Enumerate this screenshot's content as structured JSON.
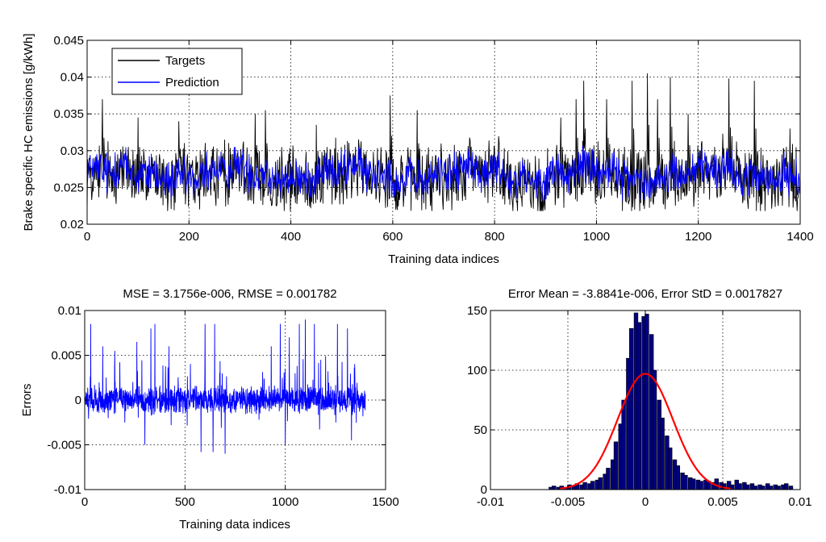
{
  "chart_data": [
    {
      "type": "line",
      "title": "",
      "xlabel": "Training data indices",
      "ylabel": "Brake specific HC emissions [g/kWh]",
      "xlim": [
        0,
        1400
      ],
      "ylim": [
        0.02,
        0.045
      ],
      "x_ticks": [
        "0",
        "200",
        "400",
        "600",
        "800",
        "1000",
        "1200",
        "1400"
      ],
      "y_ticks": [
        "0.02",
        "0.025",
        "0.03",
        "0.035",
        "0.04",
        "0.045"
      ],
      "grid": true,
      "legend": "top-left",
      "series": [
        {
          "name": "Targets",
          "color": "#000000",
          "n_points": 1400,
          "baseline": 0.0265,
          "low": 0.0225,
          "typical_high": 0.031,
          "spikes": [
            [
              30,
              0.037
            ],
            [
              100,
              0.0345
            ],
            [
              180,
              0.034
            ],
            [
              330,
              0.035
            ],
            [
              350,
              0.0355
            ],
            [
              450,
              0.0335
            ],
            [
              595,
              0.0375
            ],
            [
              648,
              0.0355
            ],
            [
              930,
              0.0345
            ],
            [
              960,
              0.037
            ],
            [
              975,
              0.0395
            ],
            [
              1020,
              0.037
            ],
            [
              1070,
              0.0395
            ],
            [
              1100,
              0.0405
            ],
            [
              1120,
              0.037
            ],
            [
              1145,
              0.04
            ],
            [
              1180,
              0.035
            ],
            [
              1260,
              0.0398
            ],
            [
              1310,
              0.0395
            ],
            [
              1380,
              0.033
            ]
          ]
        },
        {
          "name": "Prediction",
          "color": "#0000ff",
          "n_points": 1400,
          "baseline": 0.0268,
          "low": 0.0235,
          "typical_high": 0.0305
        }
      ]
    },
    {
      "type": "line",
      "title": "MSE = 3.1756e-006, RMSE = 0.001782",
      "xlabel": "Training data indices",
      "ylabel": "Errors",
      "xlim": [
        0,
        1500
      ],
      "ylim": [
        -0.01,
        0.01
      ],
      "x_ticks": [
        "0",
        "500",
        "1000",
        "1500"
      ],
      "y_ticks": [
        "-0.01",
        "-0.005",
        "0",
        "0.005",
        "0.01"
      ],
      "grid": true,
      "series": [
        {
          "name": "Errors",
          "color": "#0000ff",
          "n_points": 1400,
          "spikes": [
            [
              30,
              0.0085
            ],
            [
              90,
              0.006
            ],
            [
              150,
              0.0055
            ],
            [
              260,
              0.0065
            ],
            [
              330,
              0.008
            ],
            [
              350,
              0.0085
            ],
            [
              420,
              0.006
            ],
            [
              600,
              0.0085
            ],
            [
              648,
              0.0085
            ],
            [
              700,
              0.0065
            ],
            [
              930,
              0.006
            ],
            [
              975,
              0.0085
            ],
            [
              1020,
              0.007
            ],
            [
              1070,
              0.0085
            ],
            [
              1100,
              0.009
            ],
            [
              1145,
              0.0085
            ],
            [
              1260,
              0.0085
            ],
            [
              1310,
              0.008
            ],
            [
              300,
              -0.005
            ],
            [
              580,
              -0.0058
            ],
            [
              640,
              -0.0058
            ],
            [
              700,
              -0.006
            ],
            [
              1000,
              -0.005
            ],
            [
              1330,
              -0.0045
            ]
          ]
        }
      ]
    },
    {
      "type": "bar",
      "title": "Error Mean = -3.8841e-006, Error StD = 0.0017827",
      "xlabel": "",
      "ylabel": "",
      "xlim": [
        -0.01,
        0.01
      ],
      "ylim": [
        0,
        150
      ],
      "x_ticks": [
        "-0.01",
        "-0.005",
        "0",
        "0.005",
        "0.01"
      ],
      "y_ticks": [
        "0",
        "50",
        "100",
        "150"
      ],
      "grid": true,
      "bin_width": 0.00025,
      "bars": [
        {
          "x": -0.0061,
          "value": 2
        },
        {
          "x": -0.0059,
          "value": 3
        },
        {
          "x": -0.0056,
          "value": 2
        },
        {
          "x": -0.0054,
          "value": 3
        },
        {
          "x": -0.0051,
          "value": 2
        },
        {
          "x": -0.0049,
          "value": 4
        },
        {
          "x": -0.0046,
          "value": 3
        },
        {
          "x": -0.0044,
          "value": 5
        },
        {
          "x": -0.0041,
          "value": 4
        },
        {
          "x": -0.0039,
          "value": 6
        },
        {
          "x": -0.0036,
          "value": 5
        },
        {
          "x": -0.0034,
          "value": 7
        },
        {
          "x": -0.0031,
          "value": 8
        },
        {
          "x": -0.0029,
          "value": 10
        },
        {
          "x": -0.0026,
          "value": 13
        },
        {
          "x": -0.0024,
          "value": 18
        },
        {
          "x": -0.0021,
          "value": 25
        },
        {
          "x": -0.0019,
          "value": 40
        },
        {
          "x": -0.0016,
          "value": 55
        },
        {
          "x": -0.0014,
          "value": 75
        },
        {
          "x": -0.0011,
          "value": 110
        },
        {
          "x": -0.0009,
          "value": 135
        },
        {
          "x": -0.0006,
          "value": 148
        },
        {
          "x": -0.0004,
          "value": 140
        },
        {
          "x": -0.0001,
          "value": 145
        },
        {
          "x": 0.0001,
          "value": 147
        },
        {
          "x": 0.0004,
          "value": 130
        },
        {
          "x": 0.0006,
          "value": 100
        },
        {
          "x": 0.0009,
          "value": 75
        },
        {
          "x": 0.0011,
          "value": 60
        },
        {
          "x": 0.0014,
          "value": 45
        },
        {
          "x": 0.0016,
          "value": 35
        },
        {
          "x": 0.0019,
          "value": 25
        },
        {
          "x": 0.0021,
          "value": 20
        },
        {
          "x": 0.0024,
          "value": 14
        },
        {
          "x": 0.0026,
          "value": 12
        },
        {
          "x": 0.0029,
          "value": 10
        },
        {
          "x": 0.0031,
          "value": 9
        },
        {
          "x": 0.0034,
          "value": 8
        },
        {
          "x": 0.0036,
          "value": 7
        },
        {
          "x": 0.0039,
          "value": 8
        },
        {
          "x": 0.0041,
          "value": 7
        },
        {
          "x": 0.0044,
          "value": 6
        },
        {
          "x": 0.0046,
          "value": 9
        },
        {
          "x": 0.0049,
          "value": 6
        },
        {
          "x": 0.0051,
          "value": 5
        },
        {
          "x": 0.0054,
          "value": 7
        },
        {
          "x": 0.0056,
          "value": 4
        },
        {
          "x": 0.0059,
          "value": 8
        },
        {
          "x": 0.0061,
          "value": 5
        },
        {
          "x": 0.0064,
          "value": 6
        },
        {
          "x": 0.0066,
          "value": 4
        },
        {
          "x": 0.0069,
          "value": 5
        },
        {
          "x": 0.0071,
          "value": 3
        },
        {
          "x": 0.0074,
          "value": 4
        },
        {
          "x": 0.0076,
          "value": 3
        },
        {
          "x": 0.0079,
          "value": 5
        },
        {
          "x": 0.0081,
          "value": 3
        },
        {
          "x": 0.0084,
          "value": 4
        },
        {
          "x": 0.0086,
          "value": 3
        },
        {
          "x": 0.0089,
          "value": 4
        },
        {
          "x": 0.0091,
          "value": 5
        },
        {
          "x": 0.0094,
          "value": 3
        }
      ],
      "bar_color": "#000080",
      "fit_curve": {
        "color": "#ff0000",
        "mean": -3.8841e-06,
        "std": 0.0017827,
        "peak": 97,
        "xrange": [
          -0.0055,
          0.0055
        ]
      }
    }
  ]
}
